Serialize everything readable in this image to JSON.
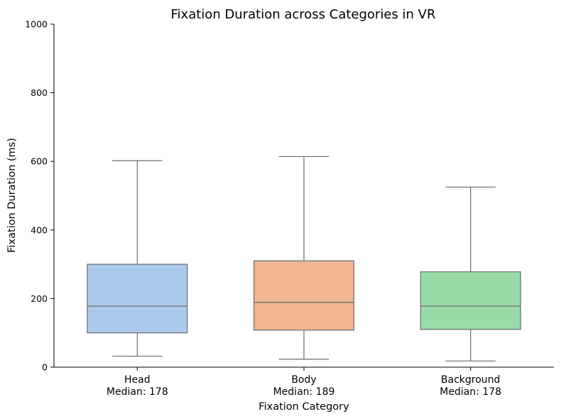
{
  "chart_data": {
    "type": "box",
    "title": "Fixation Duration across Categories in VR",
    "xlabel": "Fixation Category",
    "ylabel": "Fixation Duration (ms)",
    "ylim": [
      0,
      1000
    ],
    "yticks": [
      0,
      200,
      400,
      600,
      800,
      1000
    ],
    "grid": false,
    "categories": [
      "Head",
      "Body",
      "Background"
    ],
    "category_sublabels": [
      "Median: 178",
      "Median: 189",
      "Median: 178"
    ],
    "boxes": [
      {
        "category": "Head",
        "whisker_low": 32,
        "q1": 100,
        "median": 178,
        "q3": 300,
        "whisker_high": 602,
        "color": "#abc9ec"
      },
      {
        "category": "Body",
        "whisker_low": 23,
        "q1": 108,
        "median": 189,
        "q3": 310,
        "whisker_high": 614,
        "color": "#f0b790"
      },
      {
        "category": "Background",
        "whisker_low": 18,
        "q1": 110,
        "median": 178,
        "q3": 278,
        "whisker_high": 525,
        "color": "#98dba8"
      }
    ],
    "line_color": "#6b6b6b"
  }
}
